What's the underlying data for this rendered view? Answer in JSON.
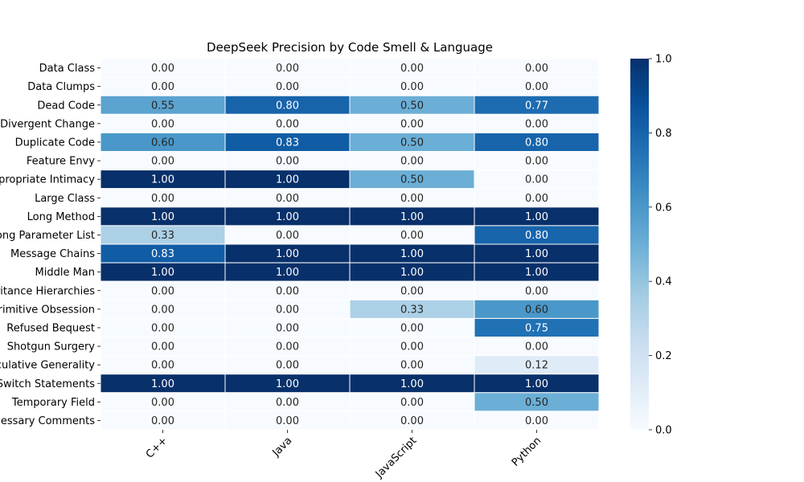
{
  "chart_data": {
    "type": "heatmap",
    "title": "DeepSeek Precision by Code Smell & Language",
    "columns": [
      "C++",
      "Java",
      "JavaScript",
      "Python"
    ],
    "rows": [
      "Data Class",
      "Data Clumps",
      "Dead Code",
      "Divergent Change",
      "Duplicate Code",
      "Feature Envy",
      "Inappropriate Intimacy",
      "Large Class",
      "Long Method",
      "Long Parameter List",
      "Message Chains",
      "Middle Man",
      "Parallel Inheritance Hierarchies",
      "Primitive Obsession",
      "Refused Bequest",
      "Shotgun Surgery",
      "Speculative Generality",
      "Switch Statements",
      "Temporary Field",
      "Unnecessary Comments"
    ],
    "values": [
      [
        0.0,
        0.0,
        0.0,
        0.0
      ],
      [
        0.0,
        0.0,
        0.0,
        0.0
      ],
      [
        0.55,
        0.8,
        0.5,
        0.77
      ],
      [
        0.0,
        0.0,
        0.0,
        0.0
      ],
      [
        0.6,
        0.83,
        0.5,
        0.8
      ],
      [
        0.0,
        0.0,
        0.0,
        0.0
      ],
      [
        1.0,
        1.0,
        0.5,
        0.0
      ],
      [
        0.0,
        0.0,
        0.0,
        0.0
      ],
      [
        1.0,
        1.0,
        1.0,
        1.0
      ],
      [
        0.33,
        0.0,
        0.0,
        0.8
      ],
      [
        0.83,
        1.0,
        1.0,
        1.0
      ],
      [
        1.0,
        1.0,
        1.0,
        1.0
      ],
      [
        0.0,
        0.0,
        0.0,
        0.0
      ],
      [
        0.0,
        0.0,
        0.33,
        0.6
      ],
      [
        0.0,
        0.0,
        0.0,
        0.75
      ],
      [
        0.0,
        0.0,
        0.0,
        0.0
      ],
      [
        0.0,
        0.0,
        0.0,
        0.12
      ],
      [
        1.0,
        1.0,
        1.0,
        1.0
      ],
      [
        0.0,
        0.0,
        0.0,
        0.5
      ],
      [
        0.0,
        0.0,
        0.0,
        0.0
      ]
    ],
    "colormap": "Blues",
    "vmin": 0,
    "vmax": 1,
    "colorbar_ticks": [
      "0.0",
      "0.2",
      "0.4",
      "0.6",
      "0.8",
      "1.0"
    ],
    "annotation_format": "0.00"
  }
}
